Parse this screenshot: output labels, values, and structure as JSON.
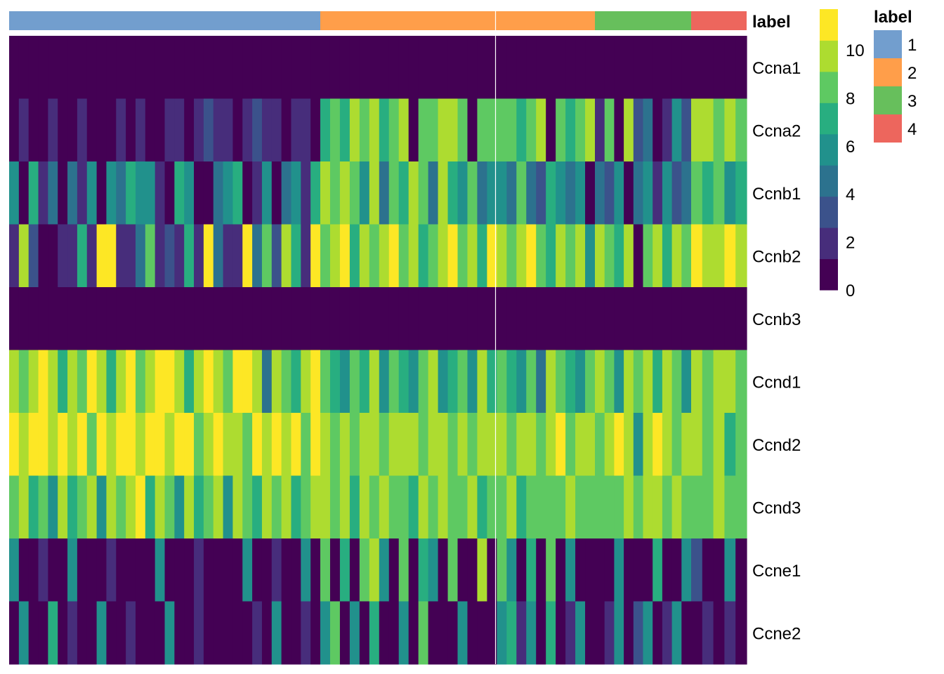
{
  "chart_data": {
    "type": "heatmap",
    "annotation_title": "label",
    "groups": [
      {
        "label": "1",
        "color": "#729ece",
        "n": 32
      },
      {
        "label": "2",
        "color": "#ff9e4a",
        "n": 28
      },
      {
        "label": "3",
        "color": "#67bf5c",
        "n": 10
      },
      {
        "label": "4",
        "color": "#ed665d",
        "n": 5
      }
    ],
    "legend_title": "label",
    "colorbar": {
      "ticks": [
        "0",
        "2",
        "4",
        "6",
        "8",
        "10"
      ],
      "range": [
        0,
        11.7
      ],
      "bin_width": 1.3,
      "colors": [
        "#440154",
        "#472d7b",
        "#3b528b",
        "#2c728e",
        "#21918c",
        "#28ae80",
        "#5ec962",
        "#addc30",
        "#fde725"
      ]
    },
    "rows": [
      {
        "gene": "Ccna1",
        "values": [
          0,
          0,
          0,
          0,
          0,
          0,
          0,
          0,
          0,
          0,
          0,
          0,
          0,
          0,
          0,
          0,
          0,
          0,
          0,
          0,
          0,
          0,
          0,
          0,
          0,
          0,
          0,
          0,
          0,
          0,
          0,
          0,
          0,
          0,
          0,
          0,
          0,
          0,
          0,
          0,
          0,
          0,
          0,
          0,
          0,
          0,
          0,
          0,
          0,
          0,
          0,
          0,
          0,
          0,
          0,
          0,
          0,
          0,
          0,
          0,
          0,
          0,
          0,
          0,
          0,
          0,
          0,
          0,
          0,
          0,
          0,
          0,
          0,
          0,
          0
        ]
      },
      {
        "gene": "Ccna2",
        "values": [
          0,
          2,
          0,
          0,
          2,
          0,
          0,
          2,
          0,
          0,
          0,
          2,
          0,
          2,
          0,
          0,
          2,
          2,
          0,
          2,
          3,
          2,
          2,
          0,
          2,
          3,
          2,
          2,
          0,
          2,
          2,
          0,
          7,
          8.5,
          7,
          10,
          8.5,
          10,
          7,
          8.5,
          10,
          0,
          8.5,
          8.5,
          10,
          10,
          8.5,
          0,
          8.5,
          8.5,
          8.5,
          8.5,
          7,
          8.5,
          10,
          0,
          8.5,
          7,
          8.5,
          10,
          2,
          8.5,
          0,
          10,
          3,
          4.5,
          0,
          2,
          6,
          3,
          10,
          10,
          8.5,
          10,
          8.5
        ]
      },
      {
        "gene": "Ccnb1",
        "values": [
          6,
          0,
          7,
          2,
          4.5,
          0,
          4.5,
          2,
          6,
          0,
          6,
          4.5,
          7,
          6,
          6,
          2,
          0,
          7,
          6,
          0,
          0,
          4.5,
          6,
          7,
          0,
          2,
          6,
          0,
          4.5,
          6,
          2,
          7,
          10,
          8.5,
          10,
          8.5,
          6,
          10,
          4.5,
          8.5,
          7,
          10,
          8.5,
          4.5,
          10,
          7,
          6,
          8.5,
          4.5,
          6,
          6,
          4.5,
          8.5,
          4.5,
          3,
          7,
          6,
          4.5,
          6,
          0,
          4.5,
          3,
          6,
          0,
          4.5,
          6,
          2,
          6,
          3,
          4.5,
          8.5,
          7,
          8.5,
          6,
          7
        ]
      },
      {
        "gene": "Ccnb2",
        "values": [
          2,
          10,
          3,
          0,
          0,
          2,
          2,
          7,
          2,
          11,
          11,
          2,
          2,
          4.5,
          8.5,
          2,
          3,
          2,
          7,
          2,
          11,
          4.5,
          2,
          2,
          11,
          4.5,
          8.5,
          3,
          10,
          7,
          2,
          11,
          8.5,
          10,
          11,
          7,
          10,
          8.5,
          10,
          11,
          8.5,
          10,
          7,
          8.5,
          10,
          11,
          8.5,
          10,
          7,
          11,
          10,
          8.5,
          10,
          11,
          8.5,
          7,
          10,
          8.5,
          10,
          6,
          10,
          8.5,
          7,
          10,
          0,
          8.5,
          10,
          7,
          10,
          8.5,
          11,
          10,
          10,
          11,
          10
        ]
      },
      {
        "gene": "Ccnb3",
        "values": [
          0,
          0,
          0,
          0,
          0,
          0,
          0,
          0,
          0,
          0,
          0,
          0,
          0,
          0,
          0,
          0,
          0,
          0,
          0,
          0,
          0,
          0,
          0,
          0,
          0,
          0,
          0,
          0,
          0,
          0,
          0,
          0,
          0,
          0,
          0,
          0,
          0,
          0,
          0,
          0,
          0,
          0,
          0,
          0,
          0,
          0,
          0,
          0,
          0,
          0,
          0,
          0,
          0,
          0,
          0,
          0,
          0,
          0,
          0,
          0,
          0,
          0,
          0,
          0,
          0,
          0,
          0,
          0,
          0,
          0,
          0,
          0,
          0,
          0,
          0
        ]
      },
      {
        "gene": "Ccnd1",
        "values": [
          10,
          8.5,
          10,
          11,
          10,
          7,
          10,
          8.5,
          11,
          10,
          7,
          10,
          11,
          8.5,
          10,
          11,
          11,
          10,
          7,
          10,
          11,
          10,
          8.5,
          11,
          11,
          10,
          4.5,
          10,
          8.5,
          7,
          10,
          11,
          8.5,
          7,
          6,
          8.5,
          7,
          10,
          6,
          8.5,
          7,
          6,
          8.5,
          10,
          6,
          7,
          8.5,
          6,
          10,
          7,
          8.5,
          7,
          6,
          8.5,
          4.5,
          10,
          8.5,
          7,
          6,
          8.5,
          10,
          8.5,
          6,
          10,
          8.5,
          10,
          7,
          10,
          8.5,
          6,
          10,
          8.5,
          10,
          10,
          8.5
        ]
      },
      {
        "gene": "Ccnd2",
        "values": [
          11,
          10,
          11,
          11,
          10,
          11,
          10,
          11,
          8.5,
          11,
          10,
          11,
          11,
          10,
          11,
          11,
          10,
          11,
          11,
          8.5,
          10,
          11,
          10,
          10,
          8.5,
          11,
          10,
          11,
          10,
          11,
          8.5,
          11,
          10,
          8.5,
          10,
          8.5,
          10,
          10,
          8.5,
          10,
          10,
          10,
          8.5,
          10,
          10,
          8.5,
          10,
          8.5,
          10,
          10,
          10,
          8.5,
          10,
          10,
          8.5,
          10,
          11,
          8.5,
          10,
          10,
          8.5,
          10,
          11,
          10,
          6,
          10,
          11,
          10,
          8.5,
          10,
          10,
          8.5,
          10,
          7,
          8.5
        ]
      },
      {
        "gene": "Ccnd3",
        "values": [
          8.5,
          10,
          7,
          8.5,
          6,
          10,
          7,
          8.5,
          10,
          6,
          10,
          8.5,
          10,
          11,
          7,
          10,
          8.5,
          6,
          10,
          7,
          8.5,
          10,
          6,
          10,
          8.5,
          7,
          10,
          8.5,
          10,
          7,
          8.5,
          10,
          10,
          8.5,
          10,
          7,
          10,
          8.5,
          10,
          8.5,
          8.5,
          7,
          10,
          8.5,
          10,
          8.5,
          8.5,
          10,
          7,
          8.5,
          8.5,
          10,
          7,
          8.5,
          8.5,
          8.5,
          8.5,
          10,
          8.5,
          8.5,
          8.5,
          8.5,
          8.5,
          10,
          8.5,
          10,
          10,
          8.5,
          10,
          8.5,
          8.5,
          8.5,
          10,
          8.5,
          8.5
        ]
      },
      {
        "gene": "Ccne1",
        "values": [
          6,
          0,
          0,
          2,
          0,
          0,
          6,
          0,
          0,
          0,
          2,
          0,
          0,
          0,
          0,
          6,
          0,
          0,
          0,
          2,
          0,
          0,
          0,
          0,
          6,
          0,
          0,
          2,
          0,
          0,
          6,
          0,
          8.5,
          0,
          7,
          0,
          8.5,
          10,
          6,
          0,
          8.5,
          0,
          7,
          6,
          0,
          8.5,
          0,
          0,
          10,
          0,
          8.5,
          6,
          0,
          7,
          0,
          8.5,
          0,
          6,
          0,
          0,
          0,
          0,
          6,
          0,
          0,
          0,
          7,
          0,
          0,
          6,
          3,
          0,
          0,
          6,
          0
        ]
      },
      {
        "gene": "Ccne2",
        "values": [
          0,
          6,
          0,
          0,
          7,
          0,
          2,
          0,
          0,
          6,
          0,
          0,
          2,
          0,
          0,
          0,
          6,
          0,
          0,
          2,
          0,
          0,
          0,
          0,
          0,
          2,
          0,
          6,
          0,
          0,
          2,
          0,
          6,
          8.5,
          0,
          6,
          0,
          7,
          0,
          0,
          6,
          0,
          8.5,
          0,
          0,
          0,
          6,
          0,
          0,
          0,
          6,
          7,
          2,
          6,
          0,
          7,
          0,
          2,
          6,
          0,
          0,
          2,
          6,
          0,
          3,
          6,
          0,
          2,
          6,
          0,
          0,
          2,
          0,
          2,
          0
        ]
      }
    ]
  }
}
